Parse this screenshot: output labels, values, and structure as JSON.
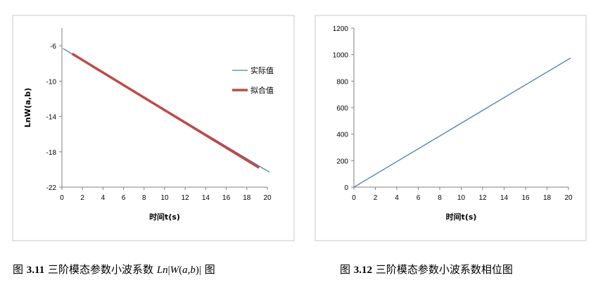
{
  "chart_data": [
    {
      "type": "line",
      "title": "",
      "xlabel": "时间t(s)",
      "ylabel": "LnW(a,b)",
      "xlim": [
        0,
        20
      ],
      "ylim": [
        -22,
        -4
      ],
      "xticks": [
        0,
        2,
        4,
        6,
        8,
        10,
        12,
        14,
        16,
        18,
        20
      ],
      "yticks": [
        -6,
        -10,
        -14,
        -18,
        -22
      ],
      "grid": false,
      "legend": "right",
      "series": [
        {
          "name": "实际值",
          "color": "#4a7ebb",
          "x": [
            0.1,
            20.2
          ],
          "y": [
            -6.3,
            -20.3
          ]
        },
        {
          "name": "拟合值",
          "color": "#be4b48",
          "x": [
            1.0,
            19.2
          ],
          "y": [
            -6.9,
            -19.8
          ]
        }
      ]
    },
    {
      "type": "line",
      "title": "",
      "xlabel": "时间t(s)",
      "ylabel": "",
      "xlim": [
        0,
        20
      ],
      "ylim": [
        0,
        1200
      ],
      "xticks": [
        0,
        2,
        4,
        6,
        8,
        10,
        12,
        14,
        16,
        18,
        20
      ],
      "yticks": [
        0,
        200,
        400,
        600,
        800,
        1000,
        1200
      ],
      "grid": false,
      "series": [
        {
          "color": "#4a7ebb",
          "x": [
            0,
            20.2
          ],
          "y": [
            0,
            975
          ]
        }
      ]
    }
  ],
  "captions": {
    "left": {
      "prefix": "图",
      "num": "3.11",
      "text": "三阶模态参数小波系数",
      "suffix": "图"
    },
    "right": {
      "prefix": "图",
      "num": "3.12",
      "text": "三阶模态参数小波系数相位图"
    }
  }
}
